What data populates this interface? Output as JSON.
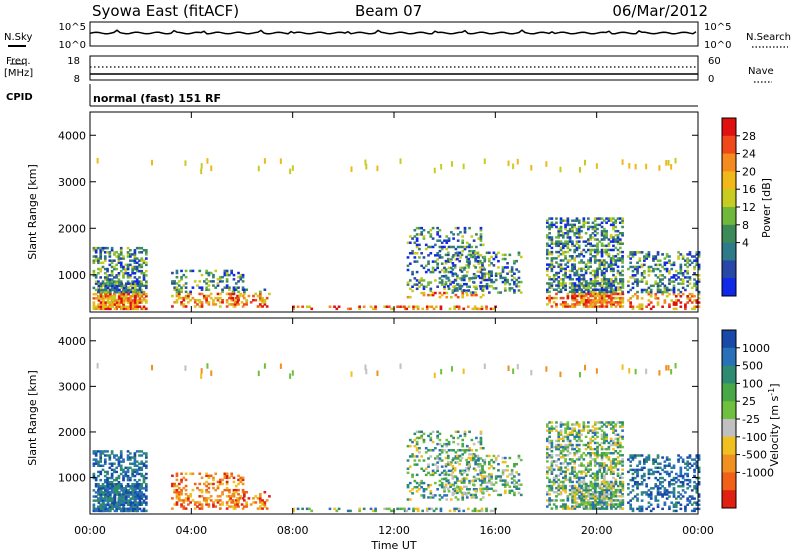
{
  "header": {
    "title": "Syowa East (fitACF)",
    "beam": "Beam 07",
    "date": "06/Mar/2012"
  },
  "nsky_panel": {
    "label": "N.Sky",
    "ticks_left": [
      "10^5",
      "10^0"
    ],
    "ticks_right": [
      "10^5",
      "10^0"
    ],
    "right_label": "N.Search"
  },
  "freq_panel": {
    "label_line1": "Freq.",
    "label_line2": "[MHz]",
    "ticks_left": [
      "18",
      "8"
    ],
    "ticks_right": [
      "60",
      "0"
    ],
    "right_label": "Nave"
  },
  "cpid_panel": {
    "label": "CPID",
    "text": "normal (fast) 151 RF"
  },
  "chart_data": [
    {
      "type": "heatmap",
      "name": "power",
      "ylabel": "Slant Range [km]",
      "yticks": [
        "1000",
        "2000",
        "3000",
        "4000"
      ],
      "ylim": [
        200,
        4500
      ],
      "xlim": [
        0,
        24
      ],
      "colorbar": {
        "label": "Power [dB]",
        "ticks": [
          "28",
          "24",
          "20",
          "16",
          "12",
          "8",
          "4"
        ],
        "colors": [
          "#e01010",
          "#f04818",
          "#f58a20",
          "#f0b818",
          "#c8cc20",
          "#70b83c",
          "#3c8a58",
          "#2e7a88",
          "#2848a8",
          "#1028e8"
        ]
      }
    },
    {
      "type": "heatmap",
      "name": "velocity",
      "ylabel": "Slant Range [km]",
      "yticks": [
        "1000",
        "2000",
        "3000",
        "4000"
      ],
      "ylim": [
        200,
        4500
      ],
      "xlim": [
        0,
        24
      ],
      "xticks": [
        "00:00",
        "04:00",
        "08:00",
        "12:00",
        "16:00",
        "20:00",
        "00:00"
      ],
      "xlabel": "Time UT",
      "colorbar": {
        "label": "Velocity [m s-1]",
        "ticks": [
          "1000",
          "500",
          "100",
          "25",
          "-25",
          "-100",
          "-500",
          "-1000"
        ],
        "colors": [
          "#1848a8",
          "#2870b8",
          "#2e8a70",
          "#48a848",
          "#70c040",
          "#c0c0c0",
          "#f0c020",
          "#f09020",
          "#f06018",
          "#e02010"
        ]
      }
    }
  ]
}
